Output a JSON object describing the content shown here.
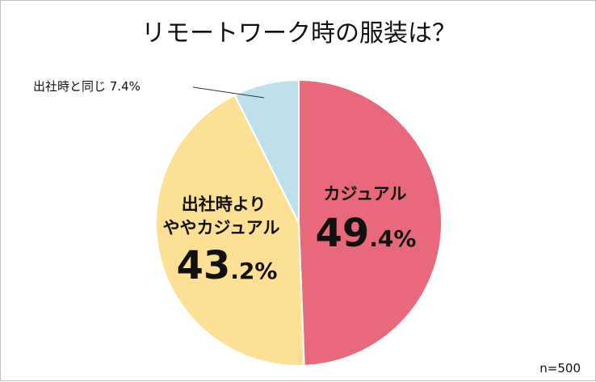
{
  "chart_data": {
    "type": "pie",
    "title": "リモートワーク時の服装は？",
    "note": "n=500",
    "slices": [
      {
        "label": "カジュアル",
        "lines": [
          "カジュアル"
        ],
        "whole": "49",
        "fraction": ".4%",
        "value": 49.4,
        "color": "#e8697b"
      },
      {
        "label": "出社時よりややカジュアル",
        "lines": [
          "出社時より",
          "ややカジュアル"
        ],
        "whole": "43",
        "fraction": ".2%",
        "value": 43.2,
        "color": "#fde095"
      },
      {
        "label": "出社時と同じ",
        "outside_text": "出社時と同じ  7.4%",
        "value": 7.4,
        "color": "#bde0ea"
      }
    ]
  }
}
